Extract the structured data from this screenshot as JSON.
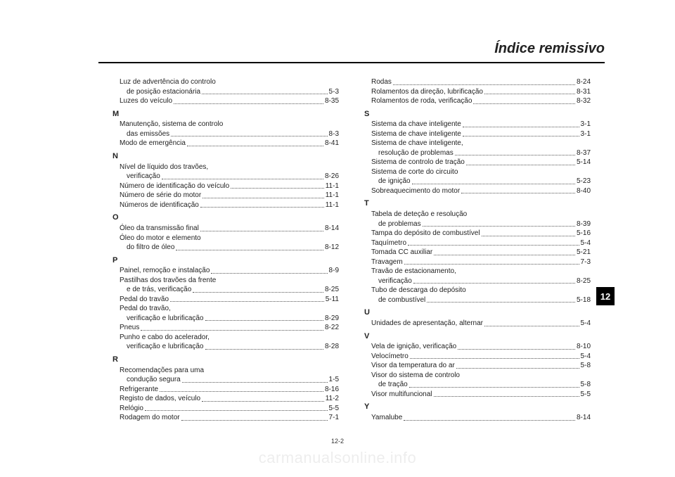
{
  "header": {
    "title": "Índice remissivo"
  },
  "footer": {
    "pageNum": "12-2"
  },
  "tab": {
    "label": "12"
  },
  "watermark": {
    "text": "carmanualsonline.info"
  },
  "col1": [
    {
      "type": "entry",
      "indent": 1,
      "text": "Luz de advertência do controlo"
    },
    {
      "type": "entry",
      "indent": 2,
      "text": "de posição estacionária",
      "page": "5-3"
    },
    {
      "type": "entry",
      "indent": 1,
      "text": "Luzes do veículo",
      "page": "8-35"
    },
    {
      "type": "letter",
      "text": "M"
    },
    {
      "type": "entry",
      "indent": 1,
      "text": "Manutenção, sistema de controlo"
    },
    {
      "type": "entry",
      "indent": 2,
      "text": "das emissões",
      "page": "8-3"
    },
    {
      "type": "entry",
      "indent": 1,
      "text": "Modo de emergência",
      "page": "8-41"
    },
    {
      "type": "letter",
      "text": "N"
    },
    {
      "type": "entry",
      "indent": 1,
      "text": "Nível de líquido dos travões,"
    },
    {
      "type": "entry",
      "indent": 2,
      "text": "verificação",
      "page": "8-26"
    },
    {
      "type": "entry",
      "indent": 1,
      "text": "Número de identificação do veículo",
      "page": "11-1"
    },
    {
      "type": "entry",
      "indent": 1,
      "text": "Número de série do motor",
      "page": "11-1"
    },
    {
      "type": "entry",
      "indent": 1,
      "text": "Números de identificação",
      "page": "11-1"
    },
    {
      "type": "letter",
      "text": "O"
    },
    {
      "type": "entry",
      "indent": 1,
      "text": "Óleo da transmissão final",
      "page": "8-14"
    },
    {
      "type": "entry",
      "indent": 1,
      "text": "Óleo do motor e elemento"
    },
    {
      "type": "entry",
      "indent": 2,
      "text": "do filtro de óleo",
      "page": "8-12"
    },
    {
      "type": "letter",
      "text": "P"
    },
    {
      "type": "entry",
      "indent": 1,
      "text": "Painel, remoção e instalação",
      "page": "8-9"
    },
    {
      "type": "entry",
      "indent": 1,
      "text": "Pastilhas dos travões da frente"
    },
    {
      "type": "entry",
      "indent": 2,
      "text": "e de trás, verificação",
      "page": "8-25"
    },
    {
      "type": "entry",
      "indent": 1,
      "text": "Pedal do travão",
      "page": "5-11"
    },
    {
      "type": "entry",
      "indent": 1,
      "text": "Pedal do travão,"
    },
    {
      "type": "entry",
      "indent": 2,
      "text": "verificação e lubrificação",
      "page": "8-29"
    },
    {
      "type": "entry",
      "indent": 1,
      "text": "Pneus",
      "page": "8-22"
    },
    {
      "type": "entry",
      "indent": 1,
      "text": "Punho e cabo do acelerador,"
    },
    {
      "type": "entry",
      "indent": 2,
      "text": "verificação e lubrificação",
      "page": "8-28"
    },
    {
      "type": "letter",
      "text": "R"
    },
    {
      "type": "entry",
      "indent": 1,
      "text": "Recomendações para uma"
    },
    {
      "type": "entry",
      "indent": 2,
      "text": "condução segura",
      "page": "1-5"
    },
    {
      "type": "entry",
      "indent": 1,
      "text": "Refrigerante",
      "page": "8-16"
    },
    {
      "type": "entry",
      "indent": 1,
      "text": "Registo de dados, veículo",
      "page": "11-2"
    },
    {
      "type": "entry",
      "indent": 1,
      "text": "Relógio",
      "page": "5-5"
    },
    {
      "type": "entry",
      "indent": 1,
      "text": "Rodagem do motor",
      "page": "7-1"
    }
  ],
  "col2": [
    {
      "type": "entry",
      "indent": 1,
      "text": "Rodas",
      "page": "8-24"
    },
    {
      "type": "entry",
      "indent": 1,
      "text": "Rolamentos da direção, lubrificação",
      "page": "8-31"
    },
    {
      "type": "entry",
      "indent": 1,
      "text": "Rolamentos de roda, verificação",
      "page": "8-32"
    },
    {
      "type": "letter",
      "text": "S"
    },
    {
      "type": "entry",
      "indent": 1,
      "text": "Sistema da chave inteligente",
      "page": "3-1"
    },
    {
      "type": "entry",
      "indent": 1,
      "text": "Sistema de chave inteligente",
      "page": "3-1"
    },
    {
      "type": "entry",
      "indent": 1,
      "text": "Sistema de chave inteligente,"
    },
    {
      "type": "entry",
      "indent": 2,
      "text": "resolução de problemas",
      "page": "8-37"
    },
    {
      "type": "entry",
      "indent": 1,
      "text": "Sistema de controlo de tração",
      "page": "5-14"
    },
    {
      "type": "entry",
      "indent": 1,
      "text": "Sistema de corte do circuito"
    },
    {
      "type": "entry",
      "indent": 2,
      "text": "de ignição",
      "page": "5-23"
    },
    {
      "type": "entry",
      "indent": 1,
      "text": "Sobreaquecimento do motor",
      "page": "8-40"
    },
    {
      "type": "letter",
      "text": "T"
    },
    {
      "type": "entry",
      "indent": 1,
      "text": "Tabela de deteção e resolução"
    },
    {
      "type": "entry",
      "indent": 2,
      "text": "de problemas",
      "page": "8-39"
    },
    {
      "type": "entry",
      "indent": 1,
      "text": "Tampa do depósito de combustível",
      "page": "5-16"
    },
    {
      "type": "entry",
      "indent": 1,
      "text": "Taquímetro",
      "page": "5-4"
    },
    {
      "type": "entry",
      "indent": 1,
      "text": "Tomada CC auxiliar",
      "page": "5-21"
    },
    {
      "type": "entry",
      "indent": 1,
      "text": "Travagem",
      "page": "7-3"
    },
    {
      "type": "entry",
      "indent": 1,
      "text": "Travão de estacionamento,"
    },
    {
      "type": "entry",
      "indent": 2,
      "text": "verificação",
      "page": "8-25"
    },
    {
      "type": "entry",
      "indent": 1,
      "text": "Tubo de descarga do depósito"
    },
    {
      "type": "entry",
      "indent": 2,
      "text": "de combustível",
      "page": "5-18"
    },
    {
      "type": "letter",
      "text": "U"
    },
    {
      "type": "entry",
      "indent": 1,
      "text": "Unidades de apresentação, alternar",
      "page": "5-4"
    },
    {
      "type": "letter",
      "text": "V"
    },
    {
      "type": "entry",
      "indent": 1,
      "text": "Vela de ignição, verificação",
      "page": "8-10"
    },
    {
      "type": "entry",
      "indent": 1,
      "text": "Velocímetro",
      "page": "5-4"
    },
    {
      "type": "entry",
      "indent": 1,
      "text": "Visor da temperatura do ar",
      "page": "5-8"
    },
    {
      "type": "entry",
      "indent": 1,
      "text": "Visor do sistema de controlo"
    },
    {
      "type": "entry",
      "indent": 2,
      "text": "de tração",
      "page": "5-8"
    },
    {
      "type": "entry",
      "indent": 1,
      "text": "Visor multifuncional",
      "page": "5-5"
    },
    {
      "type": "letter",
      "text": "Y"
    },
    {
      "type": "entry",
      "indent": 1,
      "text": "Yamalube",
      "page": "8-14"
    }
  ]
}
